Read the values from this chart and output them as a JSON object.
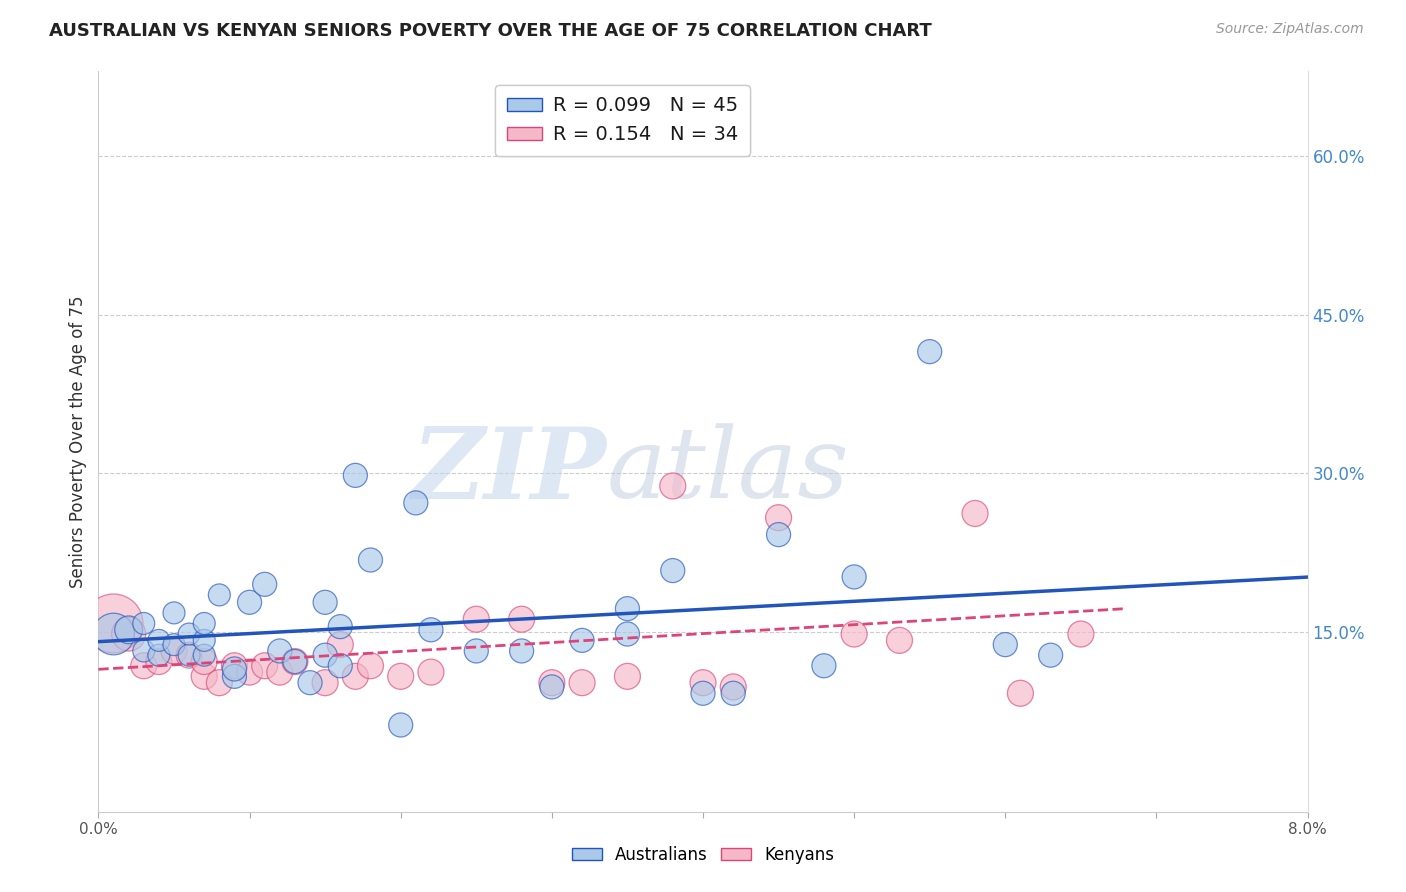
{
  "title": "AUSTRALIAN VS KENYAN SENIORS POVERTY OVER THE AGE OF 75 CORRELATION CHART",
  "source": "Source: ZipAtlas.com",
  "ylabel": "Seniors Poverty Over the Age of 75",
  "xlim": [
    0.0,
    0.08
  ],
  "ylim": [
    -0.02,
    0.68
  ],
  "xticks": [
    0.0,
    0.01,
    0.02,
    0.03,
    0.04,
    0.05,
    0.06,
    0.07,
    0.08
  ],
  "xtick_labels": [
    "0.0%",
    "",
    "",
    "",
    "",
    "",
    "",
    "",
    "8.0%"
  ],
  "yticks_right": [
    0.15,
    0.3,
    0.45,
    0.6
  ],
  "ytick_labels_right": [
    "15.0%",
    "30.0%",
    "45.0%",
    "60.0%"
  ],
  "grid_color": "#cccccc",
  "background_color": "#ffffff",
  "legend_R_aus": "0.099",
  "legend_N_aus": "45",
  "legend_R_ken": "0.154",
  "legend_N_ken": "34",
  "color_aus": "#aac8e8",
  "color_ken": "#f4b8c8",
  "color_trend_aus": "#2255bb",
  "color_trend_ken": "#dd4477",
  "watermark_zip": "ZIP",
  "watermark_atlas": "atlas",
  "aus_x": [
    0.001,
    0.002,
    0.003,
    0.003,
    0.004,
    0.004,
    0.005,
    0.005,
    0.006,
    0.006,
    0.007,
    0.007,
    0.007,
    0.008,
    0.009,
    0.009,
    0.01,
    0.011,
    0.012,
    0.013,
    0.014,
    0.015,
    0.015,
    0.016,
    0.016,
    0.017,
    0.018,
    0.02,
    0.021,
    0.022,
    0.025,
    0.028,
    0.03,
    0.032,
    0.035,
    0.035,
    0.038,
    0.04,
    0.042,
    0.045,
    0.048,
    0.05,
    0.055,
    0.06,
    0.063
  ],
  "aus_y": [
    0.148,
    0.152,
    0.132,
    0.158,
    0.128,
    0.142,
    0.138,
    0.168,
    0.128,
    0.148,
    0.128,
    0.142,
    0.158,
    0.185,
    0.108,
    0.115,
    0.178,
    0.195,
    0.132,
    0.122,
    0.102,
    0.178,
    0.128,
    0.155,
    0.118,
    0.298,
    0.218,
    0.062,
    0.272,
    0.152,
    0.132,
    0.132,
    0.098,
    0.142,
    0.148,
    0.172,
    0.208,
    0.092,
    0.092,
    0.242,
    0.118,
    0.202,
    0.415,
    0.138,
    0.128
  ],
  "aus_sizes": [
    900,
    400,
    250,
    250,
    250,
    250,
    250,
    250,
    250,
    250,
    250,
    250,
    250,
    250,
    300,
    300,
    300,
    300,
    300,
    300,
    300,
    300,
    300,
    300,
    300,
    300,
    300,
    300,
    300,
    300,
    300,
    300,
    300,
    300,
    300,
    300,
    300,
    300,
    300,
    300,
    300,
    300,
    300,
    300,
    300
  ],
  "ken_x": [
    0.001,
    0.002,
    0.003,
    0.004,
    0.005,
    0.006,
    0.007,
    0.007,
    0.008,
    0.009,
    0.01,
    0.011,
    0.012,
    0.013,
    0.015,
    0.016,
    0.017,
    0.018,
    0.02,
    0.022,
    0.025,
    0.028,
    0.03,
    0.032,
    0.035,
    0.038,
    0.04,
    0.042,
    0.045,
    0.05,
    0.053,
    0.058,
    0.061,
    0.065
  ],
  "ken_y": [
    0.158,
    0.148,
    0.118,
    0.122,
    0.132,
    0.128,
    0.108,
    0.122,
    0.102,
    0.118,
    0.112,
    0.118,
    0.112,
    0.122,
    0.102,
    0.138,
    0.108,
    0.118,
    0.108,
    0.112,
    0.162,
    0.162,
    0.102,
    0.102,
    0.108,
    0.288,
    0.102,
    0.098,
    0.258,
    0.148,
    0.142,
    0.262,
    0.092,
    0.148
  ],
  "ken_sizes": [
    1800,
    600,
    350,
    350,
    350,
    350,
    350,
    350,
    350,
    350,
    350,
    350,
    350,
    350,
    350,
    350,
    350,
    350,
    350,
    350,
    350,
    350,
    350,
    350,
    350,
    350,
    350,
    350,
    350,
    350,
    350,
    350,
    350,
    350
  ]
}
